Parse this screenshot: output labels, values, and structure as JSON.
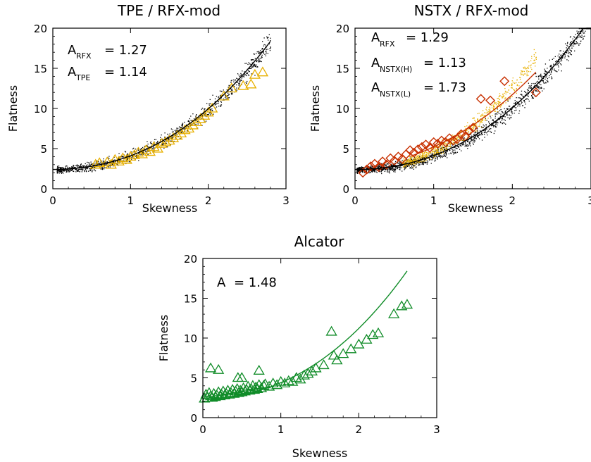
{
  "chart_data": [
    {
      "type": "scatter",
      "title": "TPE / RFX-mod",
      "xlabel": "Skewness",
      "ylabel": "Flatness",
      "xlim": [
        0,
        3
      ],
      "ylim": [
        0,
        20
      ],
      "xticks": [
        "0",
        "1",
        "2",
        "3"
      ],
      "yticks": [
        "0",
        "5",
        "10",
        "15",
        "20"
      ],
      "annotations": [
        {
          "base": "A",
          "sub": "RFX",
          "text": "= 1.27"
        },
        {
          "base": "A",
          "sub": "TPE",
          "text": "= 1.14"
        }
      ],
      "series": [
        {
          "marker": "dot",
          "color": "#000000",
          "x_range": [
            0.05,
            2.8
          ],
          "coef": 1.27,
          "count": 1100
        },
        {
          "marker": "triangle",
          "color": "#e8b000",
          "points": [
            [
              0.55,
              3.0
            ],
            [
              0.6,
              3.2
            ],
            [
              0.7,
              3.3
            ],
            [
              0.75,
              3.0
            ],
            [
              0.8,
              3.6
            ],
            [
              0.85,
              3.4
            ],
            [
              0.9,
              3.8
            ],
            [
              0.95,
              3.6
            ],
            [
              1.0,
              4.0
            ],
            [
              1.05,
              4.2
            ],
            [
              1.1,
              4.5
            ],
            [
              1.15,
              4.3
            ],
            [
              1.2,
              4.8
            ],
            [
              1.25,
              4.6
            ],
            [
              1.3,
              5.2
            ],
            [
              1.35,
              5.0
            ],
            [
              1.4,
              5.6
            ],
            [
              1.45,
              5.8
            ],
            [
              1.5,
              6.0
            ],
            [
              1.55,
              6.3
            ],
            [
              1.6,
              6.6
            ],
            [
              1.65,
              6.9
            ],
            [
              1.7,
              7.3
            ],
            [
              1.75,
              7.5
            ],
            [
              1.8,
              7.9
            ],
            [
              1.85,
              8.3
            ],
            [
              1.9,
              8.7
            ],
            [
              1.95,
              9.1
            ],
            [
              2.0,
              9.5
            ],
            [
              2.05,
              10.0
            ],
            [
              2.2,
              11.5
            ],
            [
              2.3,
              12.5
            ],
            [
              2.45,
              12.8
            ],
            [
              2.55,
              13.0
            ],
            [
              2.6,
              14.2
            ],
            [
              2.7,
              14.5
            ]
          ]
        },
        {
          "marker": "line",
          "color": "#000000",
          "x_range": [
            0,
            2.8
          ],
          "coef": 1.27
        }
      ]
    },
    {
      "type": "scatter",
      "title": "NSTX / RFX-mod",
      "xlabel": "Skewness",
      "ylabel": "Flatness",
      "xlim": [
        0,
        3
      ],
      "ylim": [
        0,
        20
      ],
      "xticks": [
        "0",
        "1",
        "2",
        "3"
      ],
      "yticks": [
        "0",
        "5",
        "10",
        "15",
        "20"
      ],
      "annotations": [
        {
          "base": "A",
          "sub": "RFX",
          "text": "= 1.29"
        },
        {
          "base": "A",
          "sub": "NSTX(H)",
          "text": "= 1.13"
        },
        {
          "base": "A",
          "sub": "NSTX(L)",
          "text": "= 1.73"
        }
      ],
      "series": [
        {
          "marker": "dot",
          "color": "#000000",
          "x_range": [
            0.02,
            3.0
          ],
          "coef": 1.29,
          "count": 1600
        },
        {
          "marker": "dot",
          "color": "#e8b000",
          "x_range": [
            0.6,
            2.3
          ],
          "coef": 1.73,
          "count": 700
        },
        {
          "marker": "diamond",
          "color": "#c83000",
          "points": [
            [
              0.1,
              2.0
            ],
            [
              0.15,
              2.4
            ],
            [
              0.2,
              2.8
            ],
            [
              0.25,
              3.1
            ],
            [
              0.3,
              2.7
            ],
            [
              0.35,
              3.4
            ],
            [
              0.4,
              3.0
            ],
            [
              0.45,
              3.8
            ],
            [
              0.5,
              3.5
            ],
            [
              0.55,
              4.0
            ],
            [
              0.6,
              3.7
            ],
            [
              0.65,
              4.3
            ],
            [
              0.7,
              4.8
            ],
            [
              0.75,
              4.5
            ],
            [
              0.8,
              4.9
            ],
            [
              0.85,
              5.2
            ],
            [
              0.9,
              5.5
            ],
            [
              0.95,
              5.1
            ],
            [
              1.0,
              5.8
            ],
            [
              1.05,
              5.6
            ],
            [
              1.1,
              6.0
            ],
            [
              1.15,
              5.8
            ],
            [
              1.2,
              6.3
            ],
            [
              1.25,
              6.0
            ],
            [
              1.3,
              6.2
            ],
            [
              1.35,
              6.8
            ],
            [
              1.4,
              6.5
            ],
            [
              1.45,
              7.2
            ],
            [
              1.5,
              7.6
            ],
            [
              1.6,
              11.2
            ],
            [
              1.72,
              11.0
            ],
            [
              1.9,
              13.4
            ],
            [
              2.3,
              12.0
            ]
          ]
        },
        {
          "marker": "line",
          "color": "#000000",
          "x_range": [
            0,
            3.0
          ],
          "coef": 1.29
        },
        {
          "marker": "line",
          "color": "#c83000",
          "x_range": [
            0.7,
            2.3
          ],
          "coef": 1.13,
          "offset": 1.3
        }
      ]
    },
    {
      "type": "scatter",
      "title": "Alcator",
      "xlabel": "Skewness",
      "ylabel": "Flatness",
      "xlim": [
        0,
        3
      ],
      "ylim": [
        0,
        20
      ],
      "xticks": [
        "0",
        "1",
        "2",
        "3"
      ],
      "yticks": [
        "0",
        "5",
        "10",
        "15",
        "20"
      ],
      "annotations": [
        {
          "base": "A",
          "sub": "",
          "text": "= 1.48"
        }
      ],
      "series": [
        {
          "marker": "triangle",
          "color": "#108c28",
          "points": [
            [
              0.02,
              2.4
            ],
            [
              0.04,
              2.9
            ],
            [
              0.06,
              2.5
            ],
            [
              0.08,
              3.1
            ],
            [
              0.1,
              2.7
            ],
            [
              0.12,
              2.5
            ],
            [
              0.14,
              3.0
            ],
            [
              0.16,
              2.6
            ],
            [
              0.18,
              2.8
            ],
            [
              0.2,
              3.2
            ],
            [
              0.22,
              2.7
            ],
            [
              0.24,
              2.9
            ],
            [
              0.26,
              3.3
            ],
            [
              0.28,
              2.8
            ],
            [
              0.3,
              3.0
            ],
            [
              0.32,
              3.4
            ],
            [
              0.34,
              2.9
            ],
            [
              0.36,
              3.1
            ],
            [
              0.38,
              3.5
            ],
            [
              0.4,
              3.0
            ],
            [
              0.42,
              3.3
            ],
            [
              0.44,
              3.6
            ],
            [
              0.46,
              3.1
            ],
            [
              0.48,
              3.4
            ],
            [
              0.5,
              3.2
            ],
            [
              0.52,
              3.7
            ],
            [
              0.54,
              3.3
            ],
            [
              0.56,
              3.5
            ],
            [
              0.58,
              3.9
            ],
            [
              0.6,
              3.4
            ],
            [
              0.62,
              3.6
            ],
            [
              0.64,
              4.0
            ],
            [
              0.66,
              3.5
            ],
            [
              0.68,
              3.8
            ],
            [
              0.7,
              3.6
            ],
            [
              0.72,
              4.1
            ],
            [
              0.75,
              3.7
            ],
            [
              0.78,
              4.0
            ],
            [
              0.8,
              4.2
            ],
            [
              0.85,
              3.9
            ],
            [
              0.9,
              4.3
            ],
            [
              0.95,
              4.1
            ],
            [
              1.0,
              4.5
            ],
            [
              1.05,
              4.3
            ],
            [
              1.1,
              4.6
            ],
            [
              1.15,
              4.5
            ],
            [
              1.2,
              5.0
            ],
            [
              1.25,
              4.8
            ],
            [
              1.3,
              5.3
            ],
            [
              1.35,
              5.5
            ],
            [
              1.4,
              5.8
            ],
            [
              1.45,
              6.2
            ],
            [
              1.55,
              6.6
            ],
            [
              1.68,
              7.8
            ],
            [
              1.72,
              7.2
            ],
            [
              1.8,
              8.0
            ],
            [
              1.9,
              8.6
            ],
            [
              2.0,
              9.2
            ],
            [
              2.1,
              9.8
            ],
            [
              2.18,
              10.4
            ],
            [
              2.25,
              10.6
            ],
            [
              2.45,
              13.0
            ],
            [
              2.55,
              14.0
            ],
            [
              2.62,
              14.2
            ],
            [
              0.1,
              6.2
            ],
            [
              0.2,
              6.0
            ],
            [
              0.45,
              5.0
            ],
            [
              0.5,
              5.0
            ],
            [
              0.72,
              5.9
            ],
            [
              1.65,
              10.8
            ]
          ]
        },
        {
          "marker": "line",
          "color": "#108c28",
          "x_range": [
            0,
            2.62
          ],
          "coef": 1.48
        }
      ]
    }
  ]
}
